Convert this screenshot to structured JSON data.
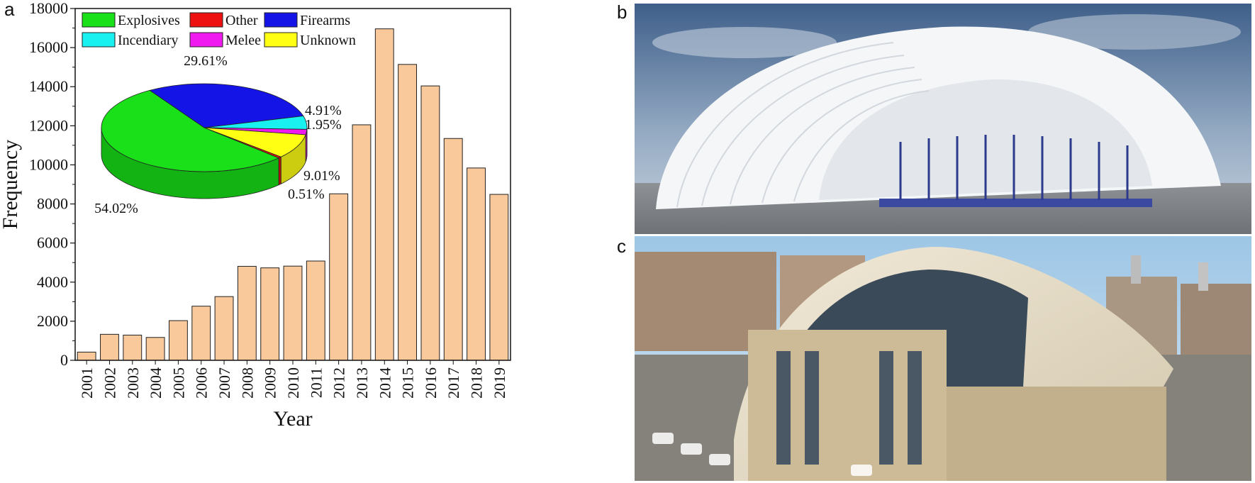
{
  "panels": {
    "a": "a",
    "b": "b",
    "c": "c"
  },
  "chart_data": {
    "type": "bar",
    "xlabel": "Year",
    "ylabel": "Frequency",
    "ylim": [
      0,
      18000
    ],
    "yticks": [
      0,
      2000,
      4000,
      6000,
      8000,
      10000,
      12000,
      14000,
      16000,
      18000
    ],
    "bar_color": "#f9c89b",
    "categories": [
      "2001",
      "2002",
      "2003",
      "2004",
      "2005",
      "2006",
      "2007",
      "2008",
      "2009",
      "2010",
      "2011",
      "2012",
      "2013",
      "2014",
      "2015",
      "2016",
      "2017",
      "2018",
      "2019"
    ],
    "values": [
      420,
      1330,
      1290,
      1170,
      2030,
      2770,
      3260,
      4810,
      4730,
      4820,
      5080,
      8520,
      12050,
      16960,
      15140,
      14040,
      11350,
      9840,
      8490
    ],
    "inset": {
      "type": "pie",
      "legend": [
        {
          "label": "Explosives",
          "color": "#19e019"
        },
        {
          "label": "Other",
          "color": "#ee1111"
        },
        {
          "label": "Firearms",
          "color": "#1414e6"
        },
        {
          "label": "Incendiary",
          "color": "#19f0f0"
        },
        {
          "label": "Melee",
          "color": "#f019f0"
        },
        {
          "label": "Unknown",
          "color": "#ffff14"
        }
      ],
      "slices": [
        {
          "label": "Firearms",
          "value": 29.61,
          "text": "29.61%",
          "color": "#1414e6"
        },
        {
          "label": "Incendiary",
          "value": 4.91,
          "text": "4.91%",
          "color": "#19f0f0"
        },
        {
          "label": "Melee",
          "value": 1.95,
          "text": "1.95%",
          "color": "#f019f0"
        },
        {
          "label": "Unknown",
          "value": 9.01,
          "text": "9.01%",
          "color": "#ffff14"
        },
        {
          "label": "Other",
          "value": 0.51,
          "text": "0.51%",
          "color": "#ee1111"
        },
        {
          "label": "Explosives",
          "value": 54.02,
          "text": "54.02%",
          "color": "#19e019"
        }
      ]
    }
  }
}
